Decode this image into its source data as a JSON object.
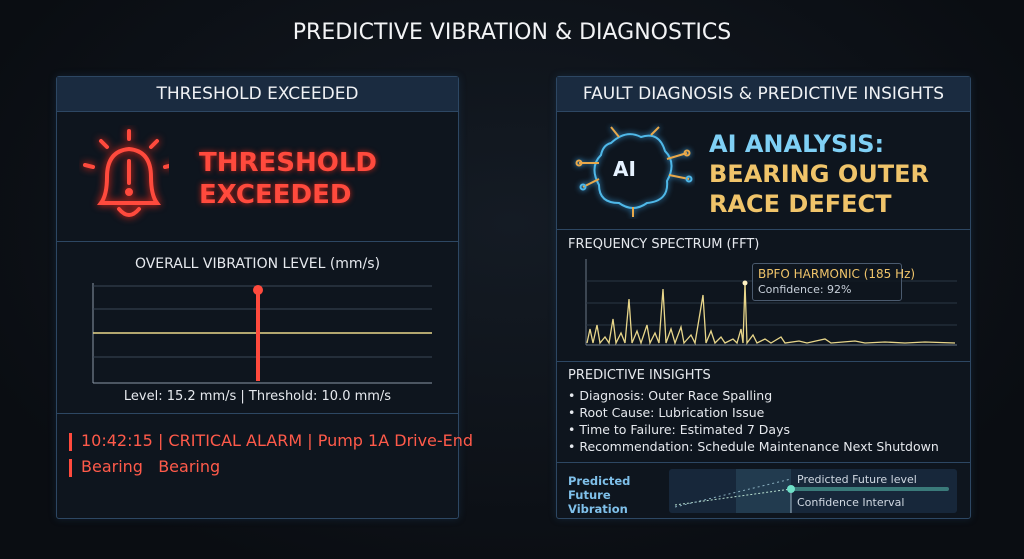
{
  "header": {
    "title": "PREDICTIVE VIBRATION & DIAGNOSTICS"
  },
  "left_panel": {
    "title": "THRESHOLD EXCEEDED",
    "alert_lines": [
      "THRESHOLD",
      "EXCEEDED"
    ],
    "chart_title": "OVERALL VIBRATION LEVEL (mm/s)",
    "chart_caption": "Level: 15.2 mm/s | Threshold: 10.0 mm/s",
    "alarm_lines": [
      "10:42:15 | CRITICAL ALARM | Pump 1A Drive-End",
      "Bearing   Bearing"
    ]
  },
  "right_panel": {
    "title": "FAULT DIAGNOSIS & PREDICTIVE INSIGHTS",
    "ai_badge": "AI",
    "analysis_lines": [
      "AI ANALYSIS:",
      "BEARING OUTER",
      "RACE DEFECT"
    ],
    "spectrum_title": "FREQUENCY SPECTRUM (FFT)",
    "peak_label": "BPFO HARMONIC (185 Hz)",
    "peak_confidence": "Confidence: 92%",
    "insights_title": "PREDICTIVE INSIGHTS",
    "insights": [
      "• Diagnosis: Outer Race Spalling",
      "• Root Cause: Lubrication Issue",
      "• Time to Failure: Estimated 7 Days",
      "• Recommendation: Schedule Maintenance Next Shutdown"
    ],
    "prediction_title": "Predicted Future Vibration",
    "prediction_legend": [
      "Predicted Future level",
      "Confidence Interval"
    ]
  }
}
